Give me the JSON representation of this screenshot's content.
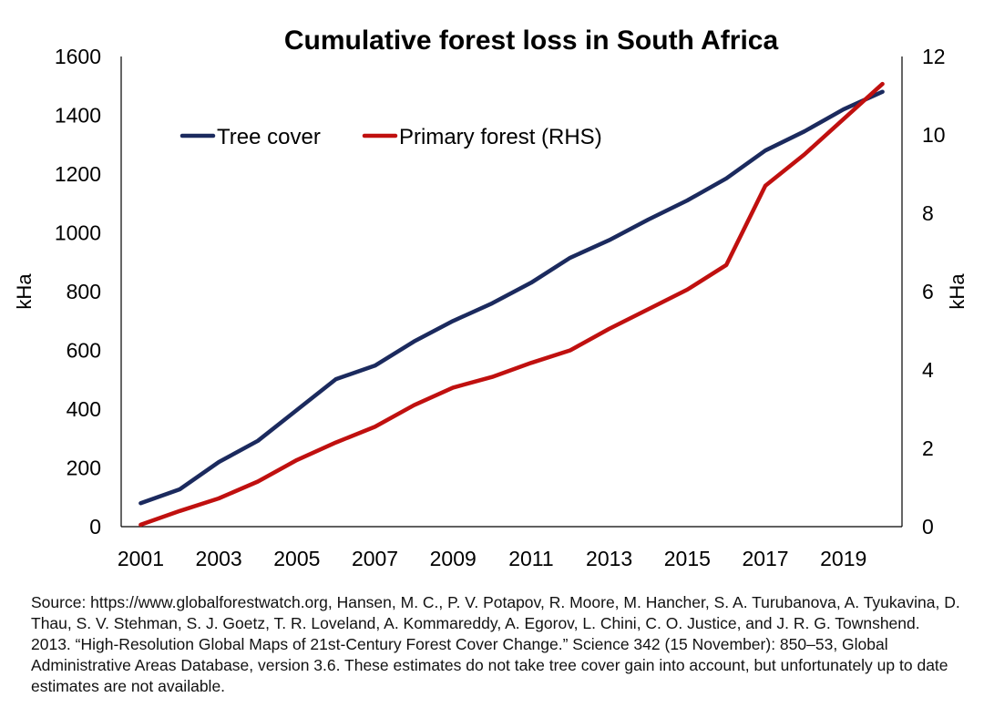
{
  "chart_data": {
    "type": "line",
    "title": "Cumulative forest loss in South Africa",
    "x": [
      2001,
      2002,
      2003,
      2004,
      2005,
      2006,
      2007,
      2008,
      2009,
      2010,
      2011,
      2012,
      2013,
      2014,
      2015,
      2016,
      2017,
      2018,
      2019,
      2020
    ],
    "x_tick_labels": [
      "2001",
      "2003",
      "2005",
      "2007",
      "2009",
      "2011",
      "2013",
      "2015",
      "2017",
      "2019"
    ],
    "xlim": [
      2000.5,
      2020.5
    ],
    "ylabel": "kHa",
    "ylim": [
      0,
      1600
    ],
    "y_ticks": [
      "0",
      "200",
      "400",
      "600",
      "800",
      "1000",
      "1200",
      "1400",
      "1600"
    ],
    "y2label": "kHa",
    "y2lim": [
      0,
      12
    ],
    "y2_ticks": [
      "0",
      "2",
      "4",
      "6",
      "8",
      "10",
      "12"
    ],
    "grid": false,
    "legend_position": "top-left",
    "series": [
      {
        "name": "Tree cover",
        "axis": "left",
        "color": "#1b2a5e",
        "values": [
          80,
          127,
          220,
          292,
          397,
          502,
          548,
          630,
          700,
          760,
          830,
          915,
          975,
          1045,
          1110,
          1185,
          1280,
          1345,
          1420,
          1480
        ]
      },
      {
        "name": "Primary forest (RHS)",
        "axis": "right",
        "color": "#c0100f",
        "values": [
          0.05,
          0.4,
          0.72,
          1.15,
          1.7,
          2.15,
          2.55,
          3.1,
          3.55,
          3.82,
          4.18,
          4.5,
          5.05,
          5.55,
          6.05,
          6.68,
          8.7,
          9.5,
          10.4,
          11.3
        ]
      }
    ]
  },
  "source_note": "Source: https://www.globalforestwatch.org, Hansen, M. C., P. V. Potapov, R. Moore, M. Hancher, S. A. Turubanova, A. Tyukavina, D. Thau, S. V. Stehman, S. J. Goetz, T. R. Loveland, A. Kommareddy, A. Egorov, L. Chini, C. O. Justice, and J. R. G. Townshend. 2013. “High-Resolution Global Maps of 21st-Century Forest Cover Change.” Science 342 (15 November): 850–53, Global Administrative Areas Database, version 3.6. These estimates do not take tree cover gain into account, but unfortunately up to date estimates are not available."
}
